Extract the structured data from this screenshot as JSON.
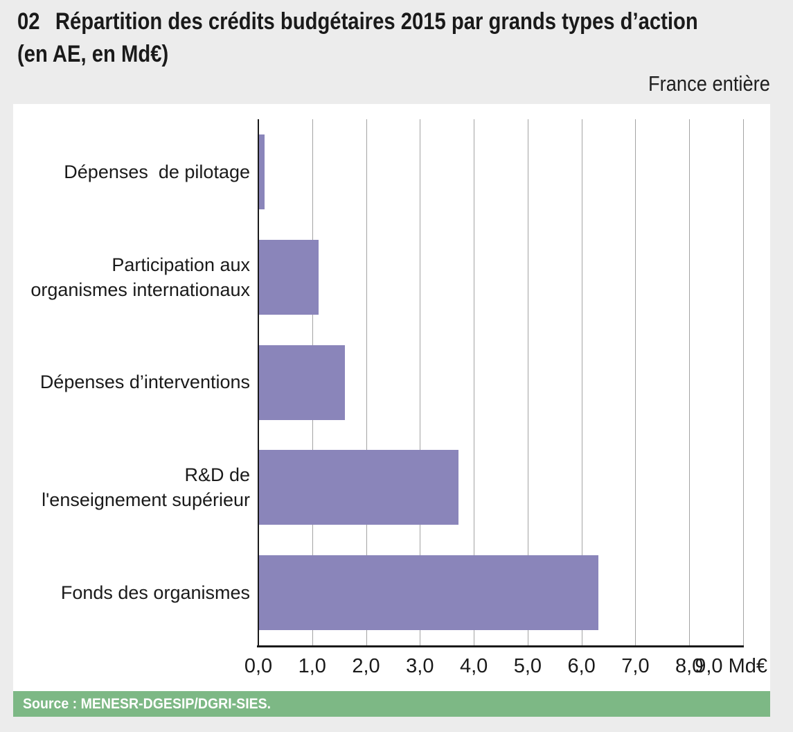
{
  "header": {
    "number": "02",
    "title_line1": "Répartition des crédits budgétaires 2015 par grands types d’action",
    "title_line2": "(en AE, en Md€)",
    "region": "France entière"
  },
  "chart_data": {
    "type": "bar",
    "orientation": "horizontal",
    "title": "02 Répartition des crédits budgétaires 2015 par grands types d’action (en AE, en Md€)",
    "subtitle": "France entière",
    "categories": [
      [
        "Dépenses  de pilotage"
      ],
      [
        "Participation aux",
        "organismes internationaux"
      ],
      [
        "Dépenses d’interventions"
      ],
      [
        "R&D de",
        "l'enseignement supérieur"
      ],
      [
        "Fonds des organismes"
      ]
    ],
    "values": [
      0.1,
      1.1,
      1.6,
      3.7,
      6.3
    ],
    "xlabel": "Md€",
    "ylabel": "",
    "xlim": [
      0,
      9
    ],
    "xticks": [
      "0,0",
      "1,0",
      "2,0",
      "3,0",
      "4,0",
      "5,0",
      "6,0",
      "7,0",
      "8,0",
      "9,0"
    ],
    "x_unit": "Md€",
    "grid": true,
    "legend": "none",
    "bar_color": "#8a85ba"
  },
  "footer": {
    "source": "Source : MENESR-DGESIP/DGRI-SIES."
  },
  "colors": {
    "page_bg": "#ececec",
    "panel_bg": "#ffffff",
    "bar": "#8a85ba",
    "gridline": "#a3a3a3",
    "axis": "#1a1a1a",
    "source_band": "#7db885",
    "source_text": "#ffffff"
  }
}
